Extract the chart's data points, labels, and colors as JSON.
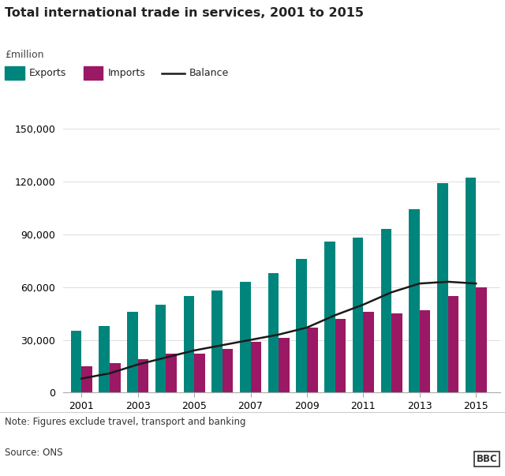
{
  "title": "Total international trade in services, 2001 to 2015",
  "ylabel": "£million",
  "years": [
    2001,
    2002,
    2003,
    2004,
    2005,
    2006,
    2007,
    2008,
    2009,
    2010,
    2011,
    2012,
    2013,
    2014,
    2015
  ],
  "exports": [
    35000,
    38000,
    46000,
    50000,
    55000,
    58000,
    63000,
    68000,
    76000,
    86000,
    88000,
    93000,
    104000,
    119000,
    122000
  ],
  "imports": [
    15000,
    17000,
    19000,
    22000,
    22000,
    25000,
    29000,
    31000,
    37000,
    42000,
    46000,
    45000,
    47000,
    55000,
    60000
  ],
  "balance": [
    8000,
    11000,
    16000,
    20000,
    24000,
    27000,
    30000,
    33000,
    37000,
    44000,
    50000,
    57000,
    62000,
    63000,
    62000
  ],
  "exports_color": "#00857c",
  "imports_color": "#9b1865",
  "balance_color": "#1a1a1a",
  "ylim": [
    0,
    150000
  ],
  "yticks": [
    0,
    30000,
    60000,
    90000,
    120000,
    150000
  ],
  "ytick_labels": [
    "0",
    "30,000",
    "60,000",
    "90,000",
    "120,000",
    "150,000"
  ],
  "xtick_labels": [
    "2001",
    "2003",
    "2005",
    "2007",
    "2009",
    "2011",
    "2013",
    "2015"
  ],
  "note": "Note: Figures exclude travel, transport and banking",
  "source": "Source: ONS",
  "background_color": "#ffffff"
}
